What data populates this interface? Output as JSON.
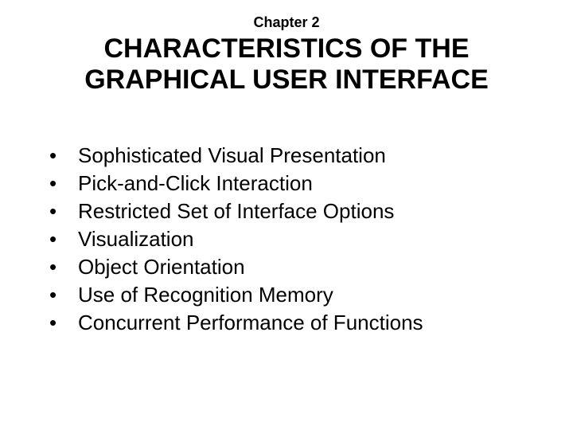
{
  "chapter_label": "Chapter 2",
  "title_line1": "CHARACTERISTICS OF THE",
  "title_line2": "GRAPHICAL USER INTERFACE",
  "bullets": [
    "Sophisticated Visual Presentation",
    "Pick-and-Click Interaction",
    "Restricted Set of Interface Options",
    "Visualization",
    "Object Orientation",
    "Use of Recognition Memory",
    "Concurrent Performance of Functions"
  ],
  "colors": {
    "background": "#ffffff",
    "text": "#000000"
  },
  "typography": {
    "chapter_fontsize": 18,
    "title_fontsize": 34,
    "bullet_fontsize": 26,
    "font_family": "Arial"
  }
}
